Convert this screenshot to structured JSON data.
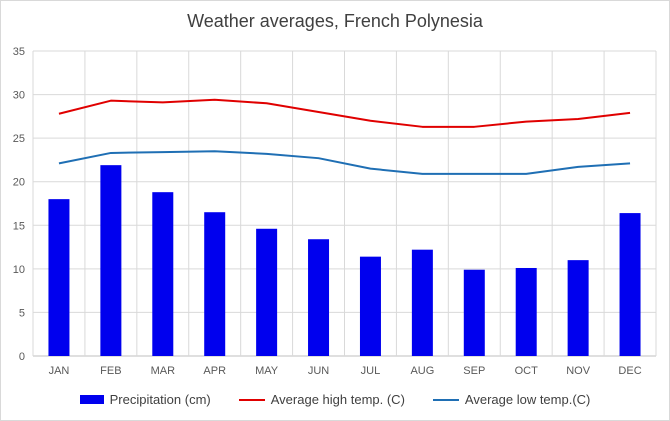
{
  "chart_data": {
    "type": "bar+line",
    "title": "Weather averages, French Polynesia",
    "categories": [
      "JAN",
      "FEB",
      "MAR",
      "APR",
      "MAY",
      "JUN",
      "JUL",
      "AUG",
      "SEP",
      "OCT",
      "NOV",
      "DEC"
    ],
    "series": [
      {
        "name": "Precipitation (cm)",
        "kind": "bar",
        "color": "#0000ee",
        "values": [
          18.0,
          21.9,
          18.8,
          16.5,
          14.6,
          13.4,
          11.4,
          12.2,
          9.9,
          10.1,
          11.0,
          16.4
        ]
      },
      {
        "name": "Average high temp. (C)",
        "kind": "line",
        "color": "#e00000",
        "values": [
          27.8,
          29.3,
          29.1,
          29.4,
          29.0,
          28.0,
          27.0,
          26.3,
          26.3,
          26.9,
          27.2,
          27.9
        ]
      },
      {
        "name": "Average low temp.(C)",
        "kind": "line",
        "color": "#1f6fb4",
        "values": [
          22.1,
          23.3,
          23.4,
          23.5,
          23.2,
          22.7,
          21.5,
          20.9,
          20.9,
          20.9,
          21.7,
          22.1
        ]
      }
    ],
    "yticks": [
      0,
      5,
      10,
      15,
      20,
      25,
      30,
      35
    ],
    "ylim": [
      0,
      35
    ],
    "grid": true,
    "legend_position": "bottom",
    "xlabel": "",
    "ylabel": ""
  }
}
